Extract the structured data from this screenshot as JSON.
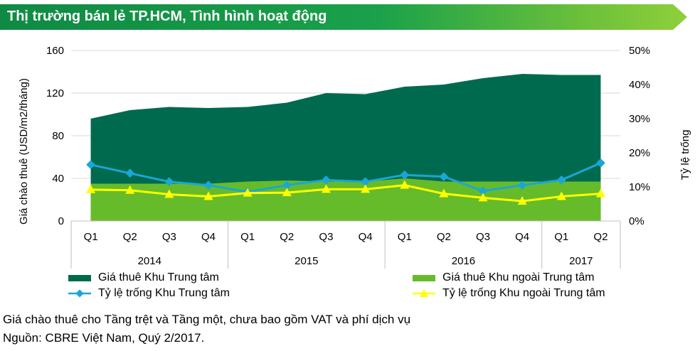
{
  "header": {
    "title": "Thị trường bán lẻ TP.HCM, Tình hình hoạt động"
  },
  "chart_data": {
    "type": "area",
    "categories": [
      "Q1",
      "Q2",
      "Q3",
      "Q4",
      "Q1",
      "Q2",
      "Q3",
      "Q4",
      "Q1",
      "Q2",
      "Q3",
      "Q4",
      "Q1",
      "Q2"
    ],
    "years": [
      {
        "label": "2014",
        "start": 0,
        "end": 3
      },
      {
        "label": "2015",
        "start": 4,
        "end": 7
      },
      {
        "label": "2016",
        "start": 8,
        "end": 11
      },
      {
        "label": "2017",
        "start": 12,
        "end": 13
      }
    ],
    "ylabel": "Giá chào thuê (USD/m2/tháng)",
    "y2label": "Tỷ lệ trống",
    "ylim": [
      0,
      160
    ],
    "yticks": [
      "0",
      "40",
      "80",
      "120",
      "160"
    ],
    "y2lim": [
      0,
      50
    ],
    "y2ticks": [
      "0%",
      "10%",
      "20%",
      "30%",
      "40%",
      "50%"
    ],
    "grid": true,
    "legend_position": "bottom",
    "series": [
      {
        "name": "Giá thuê Khu Trung tâm",
        "kind": "area",
        "axis": "left",
        "color": "#006a4e",
        "values": [
          96,
          104,
          107,
          106,
          107,
          111,
          120,
          119,
          126,
          128,
          134,
          138,
          137,
          137
        ]
      },
      {
        "name": "Giá thuê Khu ngoài Trung tâm",
        "kind": "area",
        "axis": "left",
        "color": "#66bb2a",
        "values": [
          35,
          35,
          35,
          35,
          37,
          38,
          37,
          37,
          40,
          37,
          37,
          37,
          37,
          37
        ]
      },
      {
        "name": "Tỷ lệ trống Khu Trung tâm",
        "kind": "line",
        "axis": "right",
        "color": "#1aa6d6",
        "marker": "diamond",
        "values": [
          16.5,
          14.0,
          11.5,
          10.5,
          8.5,
          10.5,
          12.0,
          11.5,
          13.5,
          13.0,
          8.8,
          10.5,
          12.0,
          17.0
        ]
      },
      {
        "name": "Tỷ lệ trống Khu ngoài Trung tâm",
        "kind": "line",
        "axis": "right",
        "color": "#ffff00",
        "marker": "triangle",
        "values": [
          9.2,
          9.0,
          7.8,
          7.2,
          8.2,
          8.3,
          9.3,
          9.3,
          10.5,
          8.0,
          6.8,
          5.8,
          7.2,
          8.0
        ]
      }
    ]
  },
  "notes": {
    "line1": "Giá chào thuê cho Tầng trệt và Tầng một, chưa bao gồm VAT và phí dịch vụ",
    "line2": "Nguồn: CBRE Việt Nam, Quý 2/2017."
  }
}
